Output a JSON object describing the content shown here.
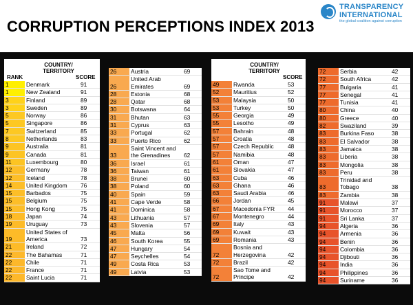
{
  "header": {
    "title": "CORRUPTION PERCEPTIONS INDEX 2013",
    "logo_line1": "TRANSPARENCY",
    "logo_line2": "INTERNATIONAL",
    "logo_tagline": "the global coalition against corruption"
  },
  "col_headers": {
    "rank": "RANK",
    "country": "COUNTRY/ TERRITORY",
    "score": "SCORE"
  },
  "colors": {
    "yellow": "#ffef00",
    "amber": "#fdc020",
    "orange_light": "#f9a94f",
    "orange": "#f38138",
    "orange_dark": "#ee6b2c",
    "red_orange": "#e8532a"
  },
  "columns": [
    {
      "rows": [
        {
          "rank": "1",
          "country": "Denmark",
          "score": "91",
          "color": "#ffef00"
        },
        {
          "rank": "1",
          "country": "New Zealand",
          "score": "91",
          "color": "#ffef00"
        },
        {
          "rank": "3",
          "country": "Finland",
          "score": "89",
          "color": "#ffd21a"
        },
        {
          "rank": "3",
          "country": "Sweden",
          "score": "89",
          "color": "#ffd21a"
        },
        {
          "rank": "5",
          "country": "Norway",
          "score": "86",
          "color": "#fdc823"
        },
        {
          "rank": "5",
          "country": "Singapore",
          "score": "86",
          "color": "#fdc823"
        },
        {
          "rank": "7",
          "country": "Switzerland",
          "score": "85",
          "color": "#fdc823"
        },
        {
          "rank": "8",
          "country": "Netherlands",
          "score": "83",
          "color": "#fdc823"
        },
        {
          "rank": "9",
          "country": "Australia",
          "score": "81",
          "color": "#fdc423"
        },
        {
          "rank": "9",
          "country": "Canada",
          "score": "81",
          "color": "#fdc423"
        },
        {
          "rank": "11",
          "country": "Luxembourg",
          "score": "80",
          "color": "#fdc423"
        },
        {
          "rank": "12",
          "country": "Germany",
          "score": "78",
          "color": "#fdbe28"
        },
        {
          "rank": "12",
          "country": "Iceland",
          "score": "78",
          "color": "#fdbe28"
        },
        {
          "rank": "14",
          "country": "United Kingdom",
          "score": "76",
          "color": "#fdbe28"
        },
        {
          "rank": "15",
          "country": "Barbados",
          "score": "75",
          "color": "#fdbe28"
        },
        {
          "rank": "15",
          "country": "Belgium",
          "score": "75",
          "color": "#fdbe28"
        },
        {
          "rank": "15",
          "country": "Hong Kong",
          "score": "75",
          "color": "#fdbe28"
        },
        {
          "rank": "18",
          "country": "Japan",
          "score": "74",
          "color": "#fdbb28"
        },
        {
          "rank": "19",
          "country": "Uruguay",
          "score": "73",
          "color": "#fdbb28"
        },
        {
          "rank": "19",
          "country": "United States of America",
          "score": "73",
          "color": "#fdbb28"
        },
        {
          "rank": "21",
          "country": "Ireland",
          "score": "72",
          "color": "#fdbb28"
        },
        {
          "rank": "22",
          "country": "The Bahamas",
          "score": "71",
          "color": "#fdb82b"
        },
        {
          "rank": "22",
          "country": "Chile",
          "score": "71",
          "color": "#fdb82b"
        },
        {
          "rank": "22",
          "country": "France",
          "score": "71",
          "color": "#fdb82b"
        },
        {
          "rank": "22",
          "country": "Saint Lucia",
          "score": "71",
          "color": "#fdb82b"
        }
      ]
    },
    {
      "rows": [
        {
          "rank": "26",
          "country": "Austria",
          "score": "69",
          "color": "#f9a94f"
        },
        {
          "rank": "26",
          "country": "United Arab Emirates",
          "score": "69",
          "color": "#f9a94f"
        },
        {
          "rank": "28",
          "country": "Estonia",
          "score": "68",
          "color": "#f9a94f"
        },
        {
          "rank": "28",
          "country": "Qatar",
          "score": "68",
          "color": "#f9a94f"
        },
        {
          "rank": "30",
          "country": "Botswana",
          "score": "64",
          "color": "#f9a94f"
        },
        {
          "rank": "31",
          "country": "Bhutan",
          "score": "63",
          "color": "#f9a94f"
        },
        {
          "rank": "31",
          "country": "Cyprus",
          "score": "63",
          "color": "#f9a94f"
        },
        {
          "rank": "33",
          "country": "Portugal",
          "score": "62",
          "color": "#f9a94f"
        },
        {
          "rank": "33",
          "country": "Puerto Rico",
          "score": "62",
          "color": "#f9a94f"
        },
        {
          "rank": "33",
          "country": "Saint Vincent and the Grenadines",
          "score": "62",
          "color": "#f9a94f"
        },
        {
          "rank": "36",
          "country": "Israel",
          "score": "61",
          "color": "#f9a94f"
        },
        {
          "rank": "36",
          "country": "Taiwan",
          "score": "61",
          "color": "#f9a94f"
        },
        {
          "rank": "38",
          "country": "Brunei",
          "score": "60",
          "color": "#f9a94f"
        },
        {
          "rank": "38",
          "country": "Poland",
          "score": "60",
          "color": "#f9a94f"
        },
        {
          "rank": "40",
          "country": "Spain",
          "score": "59",
          "color": "#f9a94f"
        },
        {
          "rank": "41",
          "country": "Cape Verde",
          "score": "58",
          "color": "#f9a94f"
        },
        {
          "rank": "41",
          "country": "Dominica",
          "score": "58",
          "color": "#f9a94f"
        },
        {
          "rank": "43",
          "country": "Lithuania",
          "score": "57",
          "color": "#f9a94f"
        },
        {
          "rank": "43",
          "country": "Slovenia",
          "score": "57",
          "color": "#f9a94f"
        },
        {
          "rank": "45",
          "country": "Malta",
          "score": "56",
          "color": "#f9a94f"
        },
        {
          "rank": "46",
          "country": "South Korea",
          "score": "55",
          "color": "#f9a94f"
        },
        {
          "rank": "47",
          "country": "Hungary",
          "score": "54",
          "color": "#f9a94f"
        },
        {
          "rank": "47",
          "country": "Seychelles",
          "score": "54",
          "color": "#f9a94f"
        },
        {
          "rank": "49",
          "country": "Costa Rica",
          "score": "53",
          "color": "#f9a94f"
        },
        {
          "rank": "49",
          "country": "Latvia",
          "score": "53",
          "color": "#f9a94f"
        }
      ]
    },
    {
      "rows": [
        {
          "rank": "49",
          "country": "Rwanda",
          "score": "53",
          "color": "#f38138"
        },
        {
          "rank": "52",
          "country": "Mauritius",
          "score": "52",
          "color": "#f38138"
        },
        {
          "rank": "53",
          "country": "Malaysia",
          "score": "50",
          "color": "#f38138"
        },
        {
          "rank": "53",
          "country": "Turkey",
          "score": "50",
          "color": "#f38138"
        },
        {
          "rank": "55",
          "country": "Georgia",
          "score": "49",
          "color": "#f38138"
        },
        {
          "rank": "55",
          "country": "Lesotho",
          "score": "49",
          "color": "#f38138"
        },
        {
          "rank": "57",
          "country": "Bahrain",
          "score": "48",
          "color": "#f38138"
        },
        {
          "rank": "57",
          "country": "Croatia",
          "score": "48",
          "color": "#f38138"
        },
        {
          "rank": "57",
          "country": "Czech Republic",
          "score": "48",
          "color": "#f38138"
        },
        {
          "rank": "57",
          "country": "Namibia",
          "score": "48",
          "color": "#f38138"
        },
        {
          "rank": "61",
          "country": "Oman",
          "score": "47",
          "color": "#f38138"
        },
        {
          "rank": "61",
          "country": "Slovakia",
          "score": "47",
          "color": "#f38138"
        },
        {
          "rank": "63",
          "country": "Cuba",
          "score": "46",
          "color": "#f38138"
        },
        {
          "rank": "63",
          "country": "Ghana",
          "score": "46",
          "color": "#f38138"
        },
        {
          "rank": "63",
          "country": "Saudi Arabia",
          "score": "46",
          "color": "#f38138"
        },
        {
          "rank": "66",
          "country": "Jordan",
          "score": "45",
          "color": "#f38138"
        },
        {
          "rank": "67",
          "country": "Macedonia FYR",
          "score": "44",
          "color": "#f38138"
        },
        {
          "rank": "67",
          "country": "Montenegro",
          "score": "44",
          "color": "#f38138"
        },
        {
          "rank": "69",
          "country": "Italy",
          "score": "43",
          "color": "#f38138"
        },
        {
          "rank": "69",
          "country": "Kuwait",
          "score": "43",
          "color": "#f38138"
        },
        {
          "rank": "69",
          "country": "Romania",
          "score": "43",
          "color": "#f38138"
        },
        {
          "rank": "72",
          "country": "Bosnia and Herzegovina",
          "score": "42",
          "color": "#f38138"
        },
        {
          "rank": "72",
          "country": "Brazil",
          "score": "42",
          "color": "#f38138"
        },
        {
          "rank": "72",
          "country": "Sao Tome and Principe",
          "score": "42",
          "color": "#f38138"
        }
      ]
    },
    {
      "rows": [
        {
          "rank": "72",
          "country": "Serbia",
          "score": "42",
          "color": "#ee6b2c"
        },
        {
          "rank": "72",
          "country": "South Africa",
          "score": "42",
          "color": "#ee6b2c"
        },
        {
          "rank": "77",
          "country": "Bulgaria",
          "score": "41",
          "color": "#ee6b2c"
        },
        {
          "rank": "77",
          "country": "Senegal",
          "score": "41",
          "color": "#ee6b2c"
        },
        {
          "rank": "77",
          "country": "Tunisia",
          "score": "41",
          "color": "#ee6b2c"
        },
        {
          "rank": "80",
          "country": "China",
          "score": "40",
          "color": "#ee6b2c"
        },
        {
          "rank": "80",
          "country": "Greece",
          "score": "40",
          "color": "#ee6b2c"
        },
        {
          "rank": "82",
          "country": "Swaziland",
          "score": "39",
          "color": "#ee6b2c"
        },
        {
          "rank": "83",
          "country": "Burkina Faso",
          "score": "38",
          "color": "#ee6b2c"
        },
        {
          "rank": "83",
          "country": "El Salvador",
          "score": "38",
          "color": "#ee6b2c"
        },
        {
          "rank": "83",
          "country": "Jamaica",
          "score": "38",
          "color": "#ee6b2c"
        },
        {
          "rank": "83",
          "country": "Liberia",
          "score": "38",
          "color": "#ee6b2c"
        },
        {
          "rank": "83",
          "country": "Mongolia",
          "score": "38",
          "color": "#ee6b2c"
        },
        {
          "rank": "83",
          "country": "Peru",
          "score": "38",
          "color": "#ee6b2c"
        },
        {
          "rank": "83",
          "country": "Trinidad and Tobago",
          "score": "38",
          "color": "#ee6b2c"
        },
        {
          "rank": "83",
          "country": "Zambia",
          "score": "38",
          "color": "#ee6b2c"
        },
        {
          "rank": "91",
          "country": "Malawi",
          "score": "37",
          "color": "#e8532a"
        },
        {
          "rank": "91",
          "country": "Morocco",
          "score": "37",
          "color": "#e8532a"
        },
        {
          "rank": "91",
          "country": "Sri Lanka",
          "score": "37",
          "color": "#e8532a"
        },
        {
          "rank": "94",
          "country": "Algeria",
          "score": "36",
          "color": "#e8532a"
        },
        {
          "rank": "94",
          "country": "Armenia",
          "score": "36",
          "color": "#e8532a"
        },
        {
          "rank": "94",
          "country": "Benin",
          "score": "36",
          "color": "#e8532a"
        },
        {
          "rank": "94",
          "country": "Colombia",
          "score": "36",
          "color": "#e8532a"
        },
        {
          "rank": "94",
          "country": "Djibouti",
          "score": "36",
          "color": "#e8532a"
        },
        {
          "rank": "94",
          "country": "India",
          "score": "36",
          "color": "#e8532a"
        },
        {
          "rank": "94",
          "country": "Philippines",
          "score": "36",
          "color": "#e8532a"
        },
        {
          "rank": "94",
          "country": "Suriname",
          "score": "36",
          "color": "#e8532a"
        }
      ]
    }
  ]
}
